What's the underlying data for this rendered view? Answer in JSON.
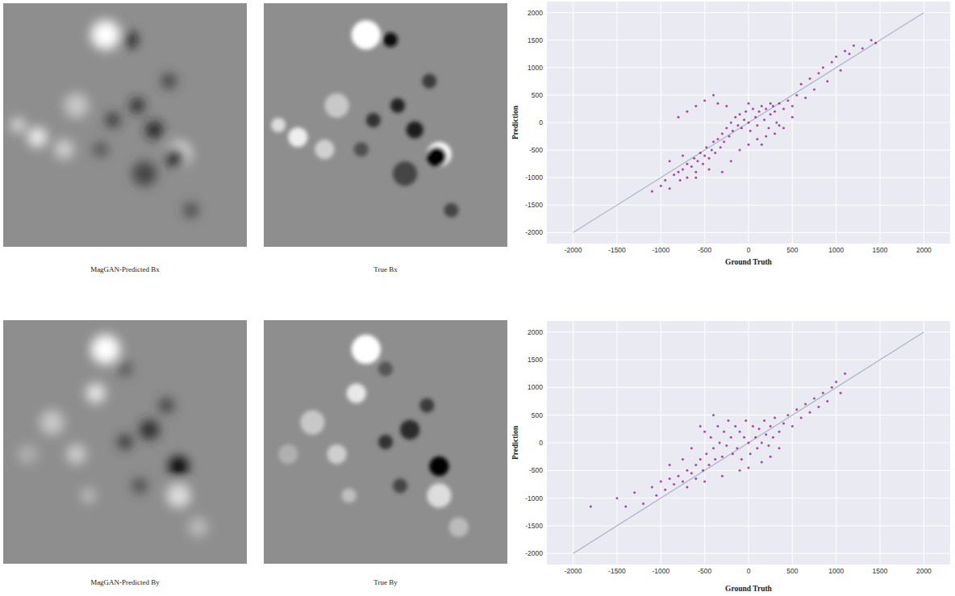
{
  "images": [
    {
      "caption": "MagGAN-Predicted Bx"
    },
    {
      "caption": "True Bx"
    },
    {
      "caption": "MagGAN-Predicted By"
    },
    {
      "caption": "True By"
    }
  ],
  "chart_data": [
    {
      "type": "scatter",
      "x_label": "Ground Truth",
      "y_label": "Prediction",
      "xlim": [
        -2300,
        2300
      ],
      "ylim": [
        -2200,
        2200
      ],
      "xticks": [
        -2000,
        -1500,
        -1000,
        -500,
        0,
        500,
        1000,
        1500,
        2000
      ],
      "yticks": [
        -2000,
        -1500,
        -1000,
        -500,
        0,
        500,
        1000,
        1500,
        2000
      ],
      "grid": true,
      "series": [
        {
          "type": "scatter",
          "color": "#8b008b",
          "marker": "circle",
          "x": [
            -1100,
            -1000,
            -950,
            -900,
            -850,
            -800,
            -780,
            -750,
            -700,
            -700,
            -650,
            -620,
            -600,
            -580,
            -550,
            -520,
            -500,
            -480,
            -450,
            -420,
            -400,
            -380,
            -350,
            -320,
            -300,
            -280,
            -250,
            -220,
            -200,
            -180,
            -150,
            -120,
            -100,
            -80,
            -50,
            -30,
            0,
            20,
            50,
            80,
            100,
            120,
            150,
            180,
            200,
            230,
            250,
            280,
            300,
            320,
            350,
            400,
            450,
            500,
            550,
            600,
            650,
            700,
            750,
            800,
            850,
            900,
            950,
            1000,
            1050,
            1100,
            1150,
            1200,
            1300,
            1400,
            1450,
            -600,
            -500,
            -400,
            -700,
            -350,
            -800,
            -300,
            -200,
            -100,
            0,
            100,
            200,
            300,
            400,
            500,
            -900,
            -600,
            -450,
            -250,
            0,
            150,
            -750,
            250,
            350
          ],
          "values": [
            -1250,
            -1150,
            -1050,
            -1200,
            -950,
            -900,
            -1050,
            -850,
            -750,
            -1000,
            -800,
            -650,
            -900,
            -700,
            -550,
            -750,
            -600,
            -450,
            -650,
            -500,
            -350,
            -550,
            -300,
            -450,
            -200,
            -350,
            -100,
            -250,
            0,
            -150,
            100,
            -50,
            150,
            -100,
            50,
            200,
            0,
            -150,
            250,
            100,
            -50,
            200,
            300,
            50,
            250,
            -100,
            150,
            300,
            200,
            0,
            350,
            250,
            400,
            300,
            500,
            700,
            450,
            800,
            600,
            900,
            1000,
            750,
            1100,
            1200,
            950,
            1300,
            1250,
            1400,
            1350,
            1500,
            1450,
            300,
            400,
            500,
            200,
            350,
            100,
            -900,
            -700,
            -500,
            -400,
            -300,
            -250,
            -200,
            -100,
            100,
            -700,
            -1000,
            -850,
            300,
            350,
            -400,
            -600,
            350,
            -50
          ]
        },
        {
          "type": "line",
          "color": "#aab4c6",
          "line_style": "solid",
          "x": [
            -2000,
            2000
          ],
          "values": [
            -2000,
            2000
          ]
        }
      ]
    },
    {
      "type": "scatter",
      "x_label": "Ground Truth",
      "y_label": "Prediction",
      "xlim": [
        -2300,
        2300
      ],
      "ylim": [
        -2200,
        2200
      ],
      "xticks": [
        -2000,
        -1500,
        -1000,
        -500,
        0,
        500,
        1000,
        1500,
        2000
      ],
      "yticks": [
        -2000,
        -1500,
        -1000,
        -500,
        0,
        500,
        1000,
        1500,
        2000
      ],
      "grid": true,
      "series": [
        {
          "type": "scatter",
          "color": "#8b008b",
          "marker": "circle",
          "x": [
            -1800,
            -1500,
            -1300,
            -1200,
            -1100,
            -1050,
            -1000,
            -950,
            -900,
            -850,
            -800,
            -750,
            -700,
            -700,
            -650,
            -600,
            -600,
            -550,
            -550,
            -520,
            -500,
            -480,
            -450,
            -430,
            -400,
            -380,
            -350,
            -330,
            -300,
            -280,
            -250,
            -230,
            -200,
            -180,
            -150,
            -130,
            -100,
            -80,
            -50,
            -30,
            0,
            20,
            50,
            80,
            100,
            120,
            150,
            180,
            200,
            230,
            250,
            280,
            300,
            350,
            400,
            450,
            500,
            550,
            600,
            650,
            700,
            750,
            800,
            850,
            900,
            950,
            1000,
            1050,
            1100,
            -650,
            -750,
            -400,
            -100,
            0,
            150,
            250,
            -300,
            -500,
            350,
            -900,
            -1400
          ],
          "values": [
            -1150,
            -1000,
            -900,
            -1100,
            -800,
            -950,
            -700,
            -850,
            -650,
            -750,
            -600,
            -700,
            -500,
            -800,
            -550,
            -400,
            -650,
            300,
            -300,
            -500,
            200,
            -200,
            -400,
            100,
            -100,
            -300,
            300,
            0,
            -250,
            200,
            -50,
            400,
            100,
            -200,
            300,
            -100,
            200,
            -300,
            100,
            400,
            0,
            -200,
            300,
            100,
            -100,
            250,
            0,
            400,
            150,
            -50,
            300,
            100,
            450,
            200,
            350,
            500,
            300,
            600,
            450,
            700,
            550,
            800,
            650,
            900,
            750,
            1000,
            1100,
            900,
            1250,
            -100,
            -300,
            500,
            -500,
            -450,
            -350,
            -250,
            -600,
            -700,
            -100,
            -400,
            -1150
          ]
        },
        {
          "type": "line",
          "color": "#aab4c6",
          "line_style": "solid",
          "x": [
            -2000,
            2000
          ],
          "values": [
            -2000,
            2000
          ]
        }
      ]
    }
  ]
}
